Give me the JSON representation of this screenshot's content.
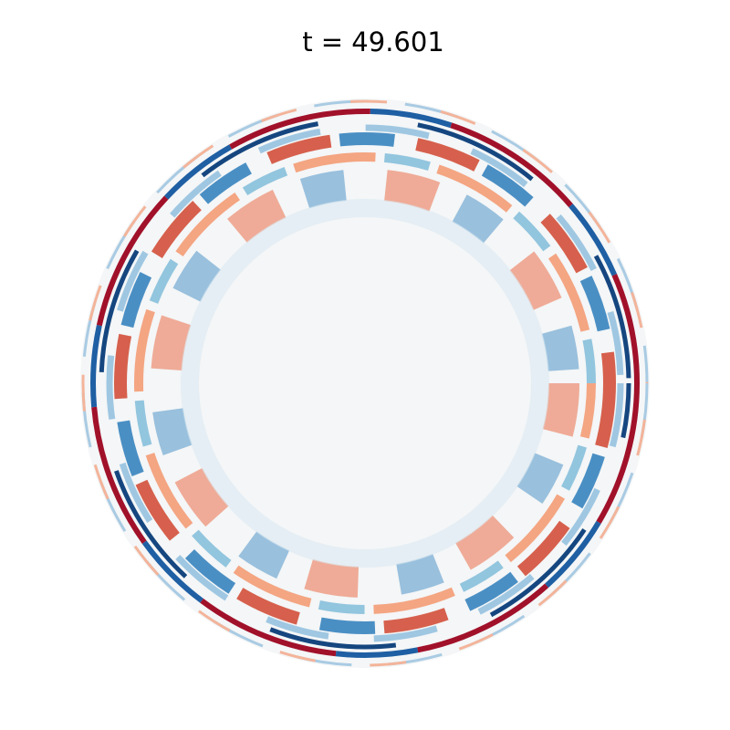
{
  "title": "t = 49.601"
}
